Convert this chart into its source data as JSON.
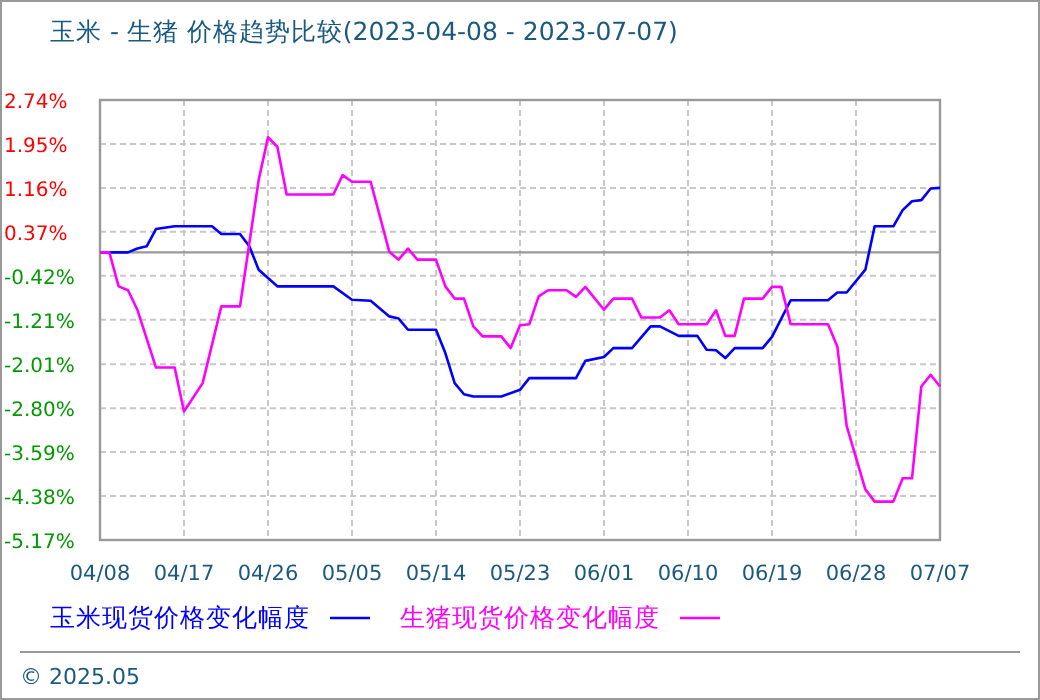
{
  "chart_data": {
    "type": "line",
    "title": "玉米 - 生猪 价格趋势比较(2023-04-08 - 2023-07-07)",
    "xlim": [
      "2023-04-08",
      "2023-07-07"
    ],
    "xticks": [
      {
        "value": "2023-04-08",
        "label": "04/08"
      },
      {
        "value": "2023-04-17",
        "label": "04/17"
      },
      {
        "value": "2023-04-26",
        "label": "04/26"
      },
      {
        "value": "2023-05-05",
        "label": "05/05"
      },
      {
        "value": "2023-05-14",
        "label": "05/14"
      },
      {
        "value": "2023-05-23",
        "label": "05/23"
      },
      {
        "value": "2023-06-01",
        "label": "06/01"
      },
      {
        "value": "2023-06-10",
        "label": "06/10"
      },
      {
        "value": "2023-06-19",
        "label": "06/19"
      },
      {
        "value": "2023-06-28",
        "label": "06/28"
      },
      {
        "value": "2023-07-07",
        "label": "07/07"
      }
    ],
    "ylim": [
      -5.17,
      2.74
    ],
    "yticks": [
      {
        "value": 2.74,
        "label": "2.74%"
      },
      {
        "value": 1.95,
        "label": "1.95%"
      },
      {
        "value": 1.16,
        "label": "1.16%"
      },
      {
        "value": 0.37,
        "label": "0.37%"
      },
      {
        "value": -0.42,
        "label": "-0.42%"
      },
      {
        "value": -1.21,
        "label": "-1.21%"
      },
      {
        "value": -2.01,
        "label": "-2.01%"
      },
      {
        "value": -2.8,
        "label": "-2.80%"
      },
      {
        "value": -3.59,
        "label": "-3.59%"
      },
      {
        "value": -4.38,
        "label": "-4.38%"
      },
      {
        "value": -5.17,
        "label": "-5.17%"
      }
    ],
    "grid": true,
    "legend": "bottom",
    "line_style": "solid",
    "marker": "none",
    "ref_lines": [
      {
        "axis": "y",
        "value": 0,
        "color": "#999999",
        "line_style": "solid"
      }
    ],
    "annotations": [
      "© 2025.05"
    ],
    "series": [
      {
        "name": "玉米现货价格变化幅度",
        "color": "#0000ff",
        "x": [
          "2023-04-08",
          "2023-04-11",
          "2023-04-12",
          "2023-04-13",
          "2023-04-14",
          "2023-04-16",
          "2023-04-20",
          "2023-04-21",
          "2023-04-23",
          "2023-04-24",
          "2023-04-25",
          "2023-04-27",
          "2023-05-03",
          "2023-05-05",
          "2023-05-07",
          "2023-05-09",
          "2023-05-10",
          "2023-05-11",
          "2023-05-14",
          "2023-05-15",
          "2023-05-16",
          "2023-05-17",
          "2023-05-18",
          "2023-05-21",
          "2023-05-23",
          "2023-05-24",
          "2023-05-29",
          "2023-05-30",
          "2023-06-01",
          "2023-06-02",
          "2023-06-04",
          "2023-06-06",
          "2023-06-07",
          "2023-06-09",
          "2023-06-11",
          "2023-06-12",
          "2023-06-13",
          "2023-06-14",
          "2023-06-15",
          "2023-06-18",
          "2023-06-19",
          "2023-06-21",
          "2023-06-25",
          "2023-06-26",
          "2023-06-27",
          "2023-06-29",
          "2023-06-30",
          "2023-07-02",
          "2023-07-03",
          "2023-07-04",
          "2023-07-05",
          "2023-07-06",
          "2023-07-07"
        ],
        "values": [
          0,
          0,
          0.07,
          0.11,
          0.42,
          0.47,
          0.47,
          0.33,
          0.33,
          0.11,
          -0.31,
          -0.61,
          -0.61,
          -0.85,
          -0.87,
          -1.15,
          -1.19,
          -1.39,
          -1.39,
          -1.81,
          -2.35,
          -2.55,
          -2.59,
          -2.59,
          -2.47,
          -2.26,
          -2.26,
          -1.95,
          -1.88,
          -1.72,
          -1.72,
          -1.33,
          -1.33,
          -1.5,
          -1.5,
          -1.75,
          -1.76,
          -1.9,
          -1.72,
          -1.72,
          -1.52,
          -0.86,
          -0.86,
          -0.72,
          -0.72,
          -0.31,
          0.47,
          0.47,
          0.76,
          0.92,
          0.94,
          1.15,
          1.16
        ]
      },
      {
        "name": "生猪现货价格变化幅度",
        "color": "#ff00ff",
        "x": [
          "2023-04-08",
          "2023-04-09",
          "2023-04-10",
          "2023-04-11",
          "2023-04-12",
          "2023-04-14",
          "2023-04-16",
          "2023-04-17",
          "2023-04-19",
          "2023-04-21",
          "2023-04-23",
          "2023-04-25",
          "2023-04-26",
          "2023-04-27",
          "2023-04-28",
          "2023-05-03",
          "2023-05-04",
          "2023-05-05",
          "2023-05-07",
          "2023-05-09",
          "2023-05-10",
          "2023-05-11",
          "2023-05-12",
          "2023-05-14",
          "2023-05-15",
          "2023-05-16",
          "2023-05-17",
          "2023-05-18",
          "2023-05-19",
          "2023-05-21",
          "2023-05-22",
          "2023-05-23",
          "2023-05-24",
          "2023-05-25",
          "2023-05-26",
          "2023-05-28",
          "2023-05-29",
          "2023-05-30",
          "2023-06-01",
          "2023-06-02",
          "2023-06-04",
          "2023-06-05",
          "2023-06-07",
          "2023-06-08",
          "2023-06-09",
          "2023-06-12",
          "2023-06-13",
          "2023-06-14",
          "2023-06-15",
          "2023-06-16",
          "2023-06-18",
          "2023-06-19",
          "2023-06-20",
          "2023-06-21",
          "2023-06-25",
          "2023-06-26",
          "2023-06-27",
          "2023-06-29",
          "2023-06-30",
          "2023-07-02",
          "2023-07-03",
          "2023-07-04",
          "2023-07-05",
          "2023-07-06",
          "2023-07-07"
        ],
        "values": [
          0,
          0,
          -0.61,
          -0.68,
          -1.03,
          -2.07,
          -2.07,
          -2.86,
          -2.35,
          -0.97,
          -0.97,
          1.3,
          2.07,
          1.9,
          1.04,
          1.04,
          1.39,
          1.27,
          1.27,
          0.01,
          -0.13,
          0.07,
          -0.13,
          -0.13,
          -0.61,
          -0.83,
          -0.83,
          -1.33,
          -1.51,
          -1.51,
          -1.72,
          -1.31,
          -1.29,
          -0.79,
          -0.68,
          -0.68,
          -0.8,
          -0.62,
          -1.03,
          -0.83,
          -0.83,
          -1.17,
          -1.17,
          -1.04,
          -1.29,
          -1.29,
          -1.04,
          -1.5,
          -1.5,
          -0.83,
          -0.83,
          -0.62,
          -0.62,
          -1.29,
          -1.29,
          -1.69,
          -3.12,
          -4.26,
          -4.48,
          -4.48,
          -4.06,
          -4.06,
          -2.41,
          -2.2,
          -2.41
        ]
      }
    ]
  }
}
